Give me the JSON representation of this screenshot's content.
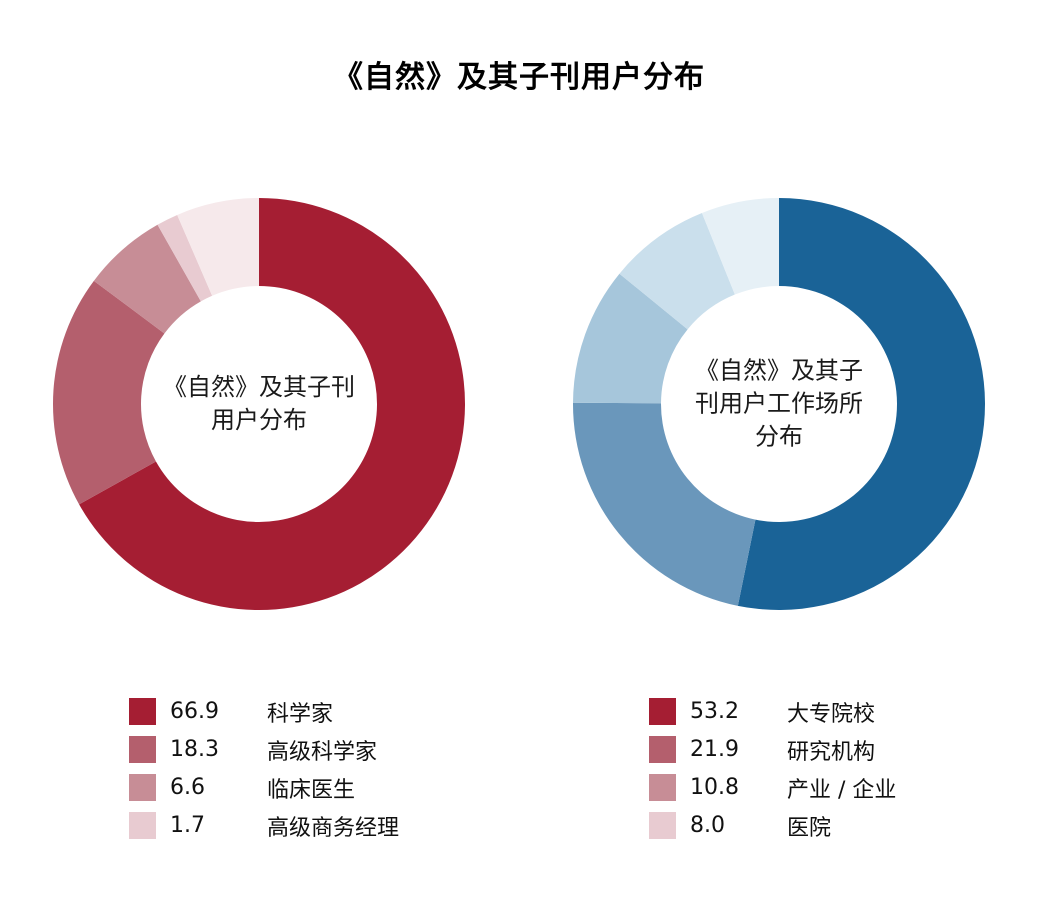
{
  "title": "《自然》及其子刊用户分布",
  "chart_data": [
    {
      "type": "pie",
      "variant": "donut",
      "id": "nature-users-distribution",
      "center_lines": [
        "《自然》及其子刊",
        "用户分布"
      ],
      "segments": [
        {
          "value": 66.9,
          "label": "科学家",
          "color": "#A51E33"
        },
        {
          "value": 18.3,
          "label": "高级科学家",
          "color": "#B45F6D"
        },
        {
          "value": 6.6,
          "label": "临床医生",
          "color": "#C78D96"
        },
        {
          "value": 1.7,
          "label": "高级商务经理",
          "color": "#E8CBD1"
        },
        {
          "value": 6.5,
          "label": "",
          "color": "#F6E9EB"
        }
      ],
      "legend": [
        {
          "value": "66.9",
          "label": "科学家",
          "color": "#A51E33"
        },
        {
          "value": "18.3",
          "label": "高级科学家",
          "color": "#B45F6D"
        },
        {
          "value": "6.6",
          "label": "临床医生",
          "color": "#C78D96"
        },
        {
          "value": "1.7",
          "label": "高级商务经理",
          "color": "#E8CBD1"
        }
      ],
      "start_angle_deg": 0,
      "direction": "clockwise",
      "legend_position": "bottom"
    },
    {
      "type": "pie",
      "variant": "donut",
      "id": "nature-users-workplace-distribution",
      "center_lines": [
        "《自然》及其子",
        "刊用户工作场所",
        "分布"
      ],
      "segments": [
        {
          "value": 53.2,
          "label": "大专院校",
          "color": "#1A6397"
        },
        {
          "value": 21.9,
          "label": "研究机构",
          "color": "#6A97BB"
        },
        {
          "value": 10.8,
          "label": "产业 / 企业",
          "color": "#A6C6DB"
        },
        {
          "value": 8.0,
          "label": "医院",
          "color": "#CADFEC"
        },
        {
          "value": 6.1,
          "label": "",
          "color": "#E6F0F6"
        }
      ],
      "legend": [
        {
          "value": "53.2",
          "label": "大专院校",
          "color": "#A51E33"
        },
        {
          "value": "21.9",
          "label": "研究机构",
          "color": "#B45F6D"
        },
        {
          "value": "10.8",
          "label": "产业 / 企业",
          "color": "#C78D96"
        },
        {
          "value": "8.0",
          "label": "医院",
          "color": "#E8CBD1"
        }
      ],
      "start_angle_deg": 0,
      "direction": "clockwise",
      "legend_position": "bottom"
    }
  ]
}
